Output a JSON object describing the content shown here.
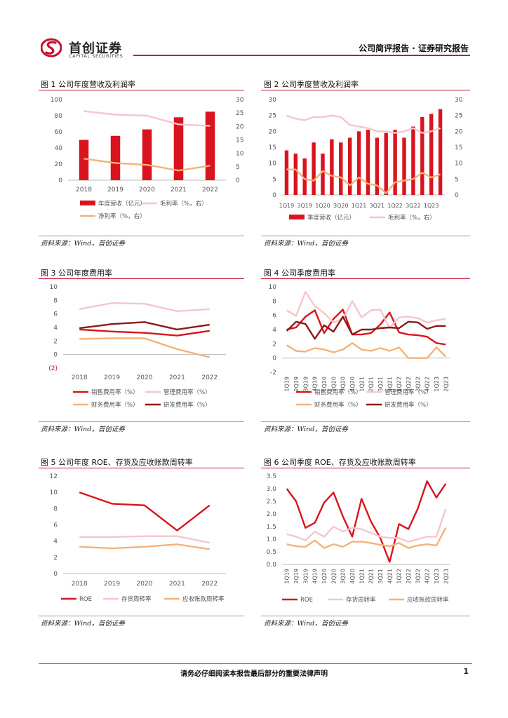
{
  "header": {
    "logo_cn": "首创证券",
    "logo_en": "CAPITAL SECURITIES",
    "right": "公司简评报告 · 证券研究报告"
  },
  "colors": {
    "red": "#d9141e",
    "pink": "#f7c5cc",
    "orange": "#f4b27a",
    "dark": "#8b1a1a",
    "accent": "#c8102e"
  },
  "footer": {
    "notice": "请务必仔细阅读本报告最后部分的重要法律声明",
    "page": "1"
  },
  "figures": [
    {
      "title": "图 1 公司年度营收及利润率",
      "source": "资料来源：Wind，首创证券"
    },
    {
      "title": "图 2  公司季度营收及利润率",
      "source": "资料来源：Wind，首创证券"
    },
    {
      "title": "图 3  公司年度费用率",
      "source": "资料来源：Wind，首创证券"
    },
    {
      "title": "图 4  公司季度费用率",
      "source": "资料来源：Wind，首创证券"
    },
    {
      "title": "图 5  公司年度 ROE、存货及应收账款周转率",
      "source": "资料来源：Wind，首创证券"
    },
    {
      "title": "图 6  公司季度 ROE、存货及应收账款周转率",
      "source": "资料来源：Wind，首创证券"
    }
  ],
  "chart_data": [
    {
      "id": "c1",
      "type": "bar+line",
      "categories": [
        "2018",
        "2019",
        "2020",
        "2021",
        "2022"
      ],
      "yleft": {
        "min": 0,
        "max": 100,
        "ticks": [
          "0",
          "20",
          "40",
          "60",
          "80",
          "100"
        ]
      },
      "yright": {
        "min": 0,
        "max": 30,
        "ticks": [
          "0",
          "5",
          "10",
          "15",
          "20",
          "25",
          "30"
        ]
      },
      "bars": [
        {
          "name": "年度营收（亿元）",
          "values": [
            50,
            55,
            63,
            78,
            85
          ],
          "color": "red"
        }
      ],
      "lines": [
        {
          "name": "毛利率（%，右）",
          "axis": "right",
          "values": [
            25.7,
            24.4,
            24.0,
            20.8,
            20.2
          ],
          "color": "pink"
        },
        {
          "name": "净利率（%，右）",
          "axis": "right",
          "values": [
            8.0,
            6.4,
            5.7,
            3.6,
            5.4
          ],
          "color": "orange"
        }
      ]
    },
    {
      "id": "c2",
      "type": "bar+line",
      "categories": [
        "1Q19",
        "2Q19",
        "3Q19",
        "4Q19",
        "1Q20",
        "2Q20",
        "3Q20",
        "4Q20",
        "1Q21",
        "2Q21",
        "3Q21",
        "4Q21",
        "1Q22",
        "2Q22",
        "3Q22",
        "4Q22",
        "1Q23",
        "2Q23"
      ],
      "tick_labels": [
        "1Q19",
        "3Q19",
        "1Q20",
        "3Q20",
        "1Q21",
        "3Q21",
        "1Q22",
        "3Q22",
        "1Q23"
      ],
      "yleft": {
        "min": 0,
        "max": 30,
        "ticks": [
          "0",
          "5",
          "10",
          "15",
          "20",
          "25",
          "30"
        ]
      },
      "yright": {
        "min": 0,
        "max": 30,
        "ticks": [
          "0",
          "5",
          "10",
          "15",
          "20",
          "25",
          "30"
        ]
      },
      "bars": [
        {
          "name": "季度营收（亿元）",
          "values": [
            14,
            13,
            11.5,
            16.5,
            13,
            17.5,
            16.5,
            18,
            20,
            20.5,
            18,
            19.5,
            20.5,
            18,
            21.5,
            24.5,
            25.5,
            27
          ],
          "color": "red"
        }
      ],
      "lines": [
        {
          "name": "毛利率（%，右）",
          "axis": "right",
          "values": [
            25,
            24,
            23.5,
            24.5,
            24.5,
            25,
            24.5,
            22,
            21.5,
            21,
            20,
            20,
            19.5,
            20,
            21,
            19.5,
            20,
            21
          ],
          "color": "pink"
        },
        {
          "name": "净利率（%，右）",
          "axis": "right",
          "values": [
            8,
            8,
            5,
            4.5,
            7.5,
            6,
            5.5,
            3,
            5.5,
            3.5,
            3,
            0.5,
            4,
            4.5,
            5,
            7,
            5.5,
            6.5
          ],
          "color": "orange"
        }
      ]
    },
    {
      "id": "c3",
      "type": "line",
      "categories": [
        "2018",
        "2019",
        "2020",
        "2021",
        "2022"
      ],
      "y": {
        "min": -2,
        "max": 10,
        "ticks": [
          "(2)",
          "0",
          "2",
          "4",
          "6",
          "8",
          "10"
        ]
      },
      "lines": [
        {
          "name": "销售费用率（%）",
          "values": [
            3.7,
            3.4,
            3.2,
            2.8,
            3.5
          ],
          "color": "red"
        },
        {
          "name": "管理费用率（%）",
          "values": [
            6.7,
            7.6,
            7.5,
            6.4,
            6.7
          ],
          "color": "pink"
        },
        {
          "name": "财务费用率（%）",
          "values": [
            2.3,
            2.4,
            2.4,
            0.8,
            -0.4
          ],
          "color": "orange"
        },
        {
          "name": "研发费用率（%）",
          "values": [
            3.9,
            4.5,
            4.8,
            3.7,
            4.4
          ],
          "color": "dark"
        }
      ]
    },
    {
      "id": "c4",
      "type": "line",
      "categories": [
        "1Q19",
        "2Q19",
        "3Q19",
        "4Q19",
        "1Q20",
        "2Q20",
        "3Q20",
        "4Q20",
        "1Q21",
        "2Q21",
        "3Q21",
        "4Q21",
        "1Q22",
        "2Q22",
        "3Q22",
        "4Q22",
        "1Q23",
        "2Q23"
      ],
      "y": {
        "min": -2,
        "max": 10,
        "ticks": [
          "-2",
          "0",
          "2",
          "4",
          "6",
          "8",
          "10"
        ]
      },
      "lines": [
        {
          "name": "销售费用率（%）",
          "values": [
            4.0,
            4.3,
            5.8,
            6.7,
            3.5,
            5.5,
            6.8,
            3.3,
            3.3,
            3.5,
            4.7,
            6.4,
            3.6,
            3.3,
            3.2,
            3.0,
            2.1,
            1.9
          ],
          "color": "red"
        },
        {
          "name": "管理费用率（%）",
          "values": [
            6.7,
            5.9,
            9.3,
            7.3,
            6.3,
            5.0,
            5.5,
            8.0,
            5.7,
            6.7,
            6.8,
            4.2,
            5.7,
            5.8,
            5.6,
            5.0,
            5.3,
            5.5
          ],
          "color": "pink"
        },
        {
          "name": "财务费用率（%）",
          "values": [
            1.8,
            1.0,
            0.9,
            1.4,
            1.2,
            0.8,
            1.2,
            2.1,
            1.2,
            1.0,
            1.4,
            1.0,
            1.5,
            0.0,
            0.0,
            0.0,
            1.5,
            0.2
          ],
          "color": "orange"
        },
        {
          "name": "研发费用率（%）",
          "values": [
            3.8,
            5.1,
            4.8,
            2.7,
            4.6,
            3.7,
            5.8,
            3.3,
            4.0,
            4.0,
            4.2,
            4.3,
            4.2,
            5.1,
            5.0,
            4.1,
            4.5,
            4.5
          ],
          "color": "dark"
        }
      ]
    },
    {
      "id": "c5",
      "type": "line",
      "categories": [
        "2018",
        "2019",
        "2020",
        "2021",
        "2022"
      ],
      "y": {
        "min": 0,
        "max": 12,
        "ticks": [
          "0",
          "2",
          "4",
          "6",
          "8",
          "10",
          "12"
        ]
      },
      "lines": [
        {
          "name": "ROE",
          "values": [
            10.0,
            8.6,
            8.4,
            5.3,
            8.4
          ],
          "color": "red"
        },
        {
          "name": "存货周转率",
          "values": [
            4.5,
            4.5,
            4.6,
            4.6,
            3.8
          ],
          "color": "pink"
        },
        {
          "name": "应收账款周转率",
          "values": [
            3.3,
            3.1,
            3.3,
            3.6,
            3.0
          ],
          "color": "orange"
        }
      ]
    },
    {
      "id": "c6",
      "type": "line",
      "categories": [
        "1Q19",
        "2Q19",
        "3Q19",
        "4Q19",
        "1Q20",
        "2Q20",
        "3Q20",
        "4Q20",
        "1Q21",
        "2Q21",
        "3Q21",
        "4Q21",
        "1Q22",
        "2Q22",
        "3Q22",
        "4Q22",
        "1Q23",
        "2Q23"
      ],
      "y": {
        "min": 0,
        "max": 3.5,
        "ticks": [
          "0.0",
          "0.5",
          "1.0",
          "1.5",
          "2.0",
          "2.5",
          "3.0",
          "3.5"
        ]
      },
      "lines": [
        {
          "name": "ROE",
          "values": [
            3.0,
            2.5,
            1.45,
            1.65,
            2.45,
            2.85,
            1.9,
            1.1,
            2.6,
            1.7,
            1.05,
            0.1,
            1.6,
            1.4,
            2.2,
            3.3,
            2.65,
            3.2
          ],
          "color": "red"
        },
        {
          "name": "存货周转率",
          "values": [
            1.2,
            1.1,
            0.95,
            1.3,
            1.1,
            1.5,
            1.3,
            1.45,
            1.4,
            1.25,
            1.1,
            1.05,
            1.05,
            0.9,
            1.0,
            1.1,
            1.1,
            2.2
          ],
          "color": "pink"
        },
        {
          "name": "应收账款周转率",
          "values": [
            0.8,
            0.72,
            0.7,
            0.95,
            0.65,
            0.8,
            0.7,
            0.9,
            0.9,
            0.85,
            0.78,
            0.72,
            0.85,
            0.65,
            0.75,
            0.8,
            0.75,
            1.45
          ],
          "color": "orange"
        }
      ]
    }
  ]
}
